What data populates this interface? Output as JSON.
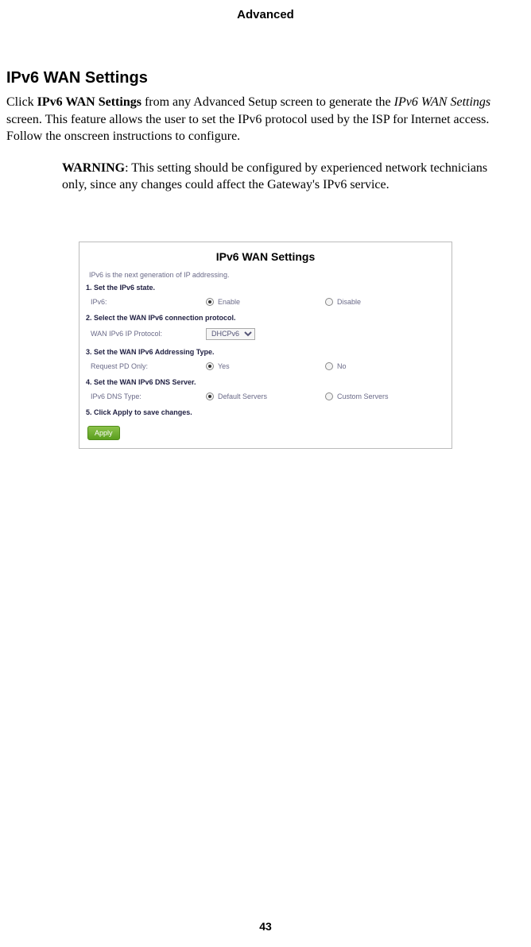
{
  "doc": {
    "header": "Advanced",
    "section_title": "IPv6 WAN Settings",
    "paragraph_prefix": "Click ",
    "paragraph_bold": "IPv6 WAN Settings",
    "paragraph_mid": " from any Advanced Setup screen to generate the ",
    "paragraph_ital": "IPv6 WAN Settings",
    "paragraph_suffix": " screen. This feature allows the user to set the IPv6 protocol used by the ISP for Internet access. Follow the onscreen instructions to configure.",
    "warning_label": "WARNING",
    "warning_text": ": This setting should be configured by experienced network technicians only, since any changes could affect the Gateway's IPv6 service.",
    "page_number": "43"
  },
  "ui": {
    "title": "IPv6 WAN Settings",
    "desc": "IPv6 is the next generation of IP addressing.",
    "step1": "1. Set the IPv6 state.",
    "ipv6_label": "IPv6:",
    "enable": "Enable",
    "disable": "Disable",
    "step2": "2. Select the WAN IPv6 connection protocol.",
    "protocol_label": "WAN IPv6 IP Protocol:",
    "protocol_value": "DHCPv6",
    "step3": "3. Set the WAN IPv6 Addressing Type.",
    "request_label": "Request PD Only:",
    "yes": "Yes",
    "no": "No",
    "step4": "4. Set the WAN IPv6 DNS Server.",
    "dns_label": "IPv6 DNS Type:",
    "default_servers": "Default Servers",
    "custom_servers": "Custom Servers",
    "step5": "5. Click Apply to save changes.",
    "apply": "Apply"
  }
}
